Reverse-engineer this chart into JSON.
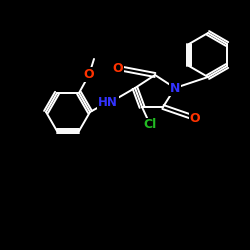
{
  "background_color": "#000000",
  "bond_color": "#ffffff",
  "atom_colors": {
    "O": "#ff3300",
    "N": "#3333ff",
    "Cl": "#22bb22",
    "C": "#ffffff"
  },
  "figsize": [
    2.5,
    2.5
  ],
  "dpi": 100
}
